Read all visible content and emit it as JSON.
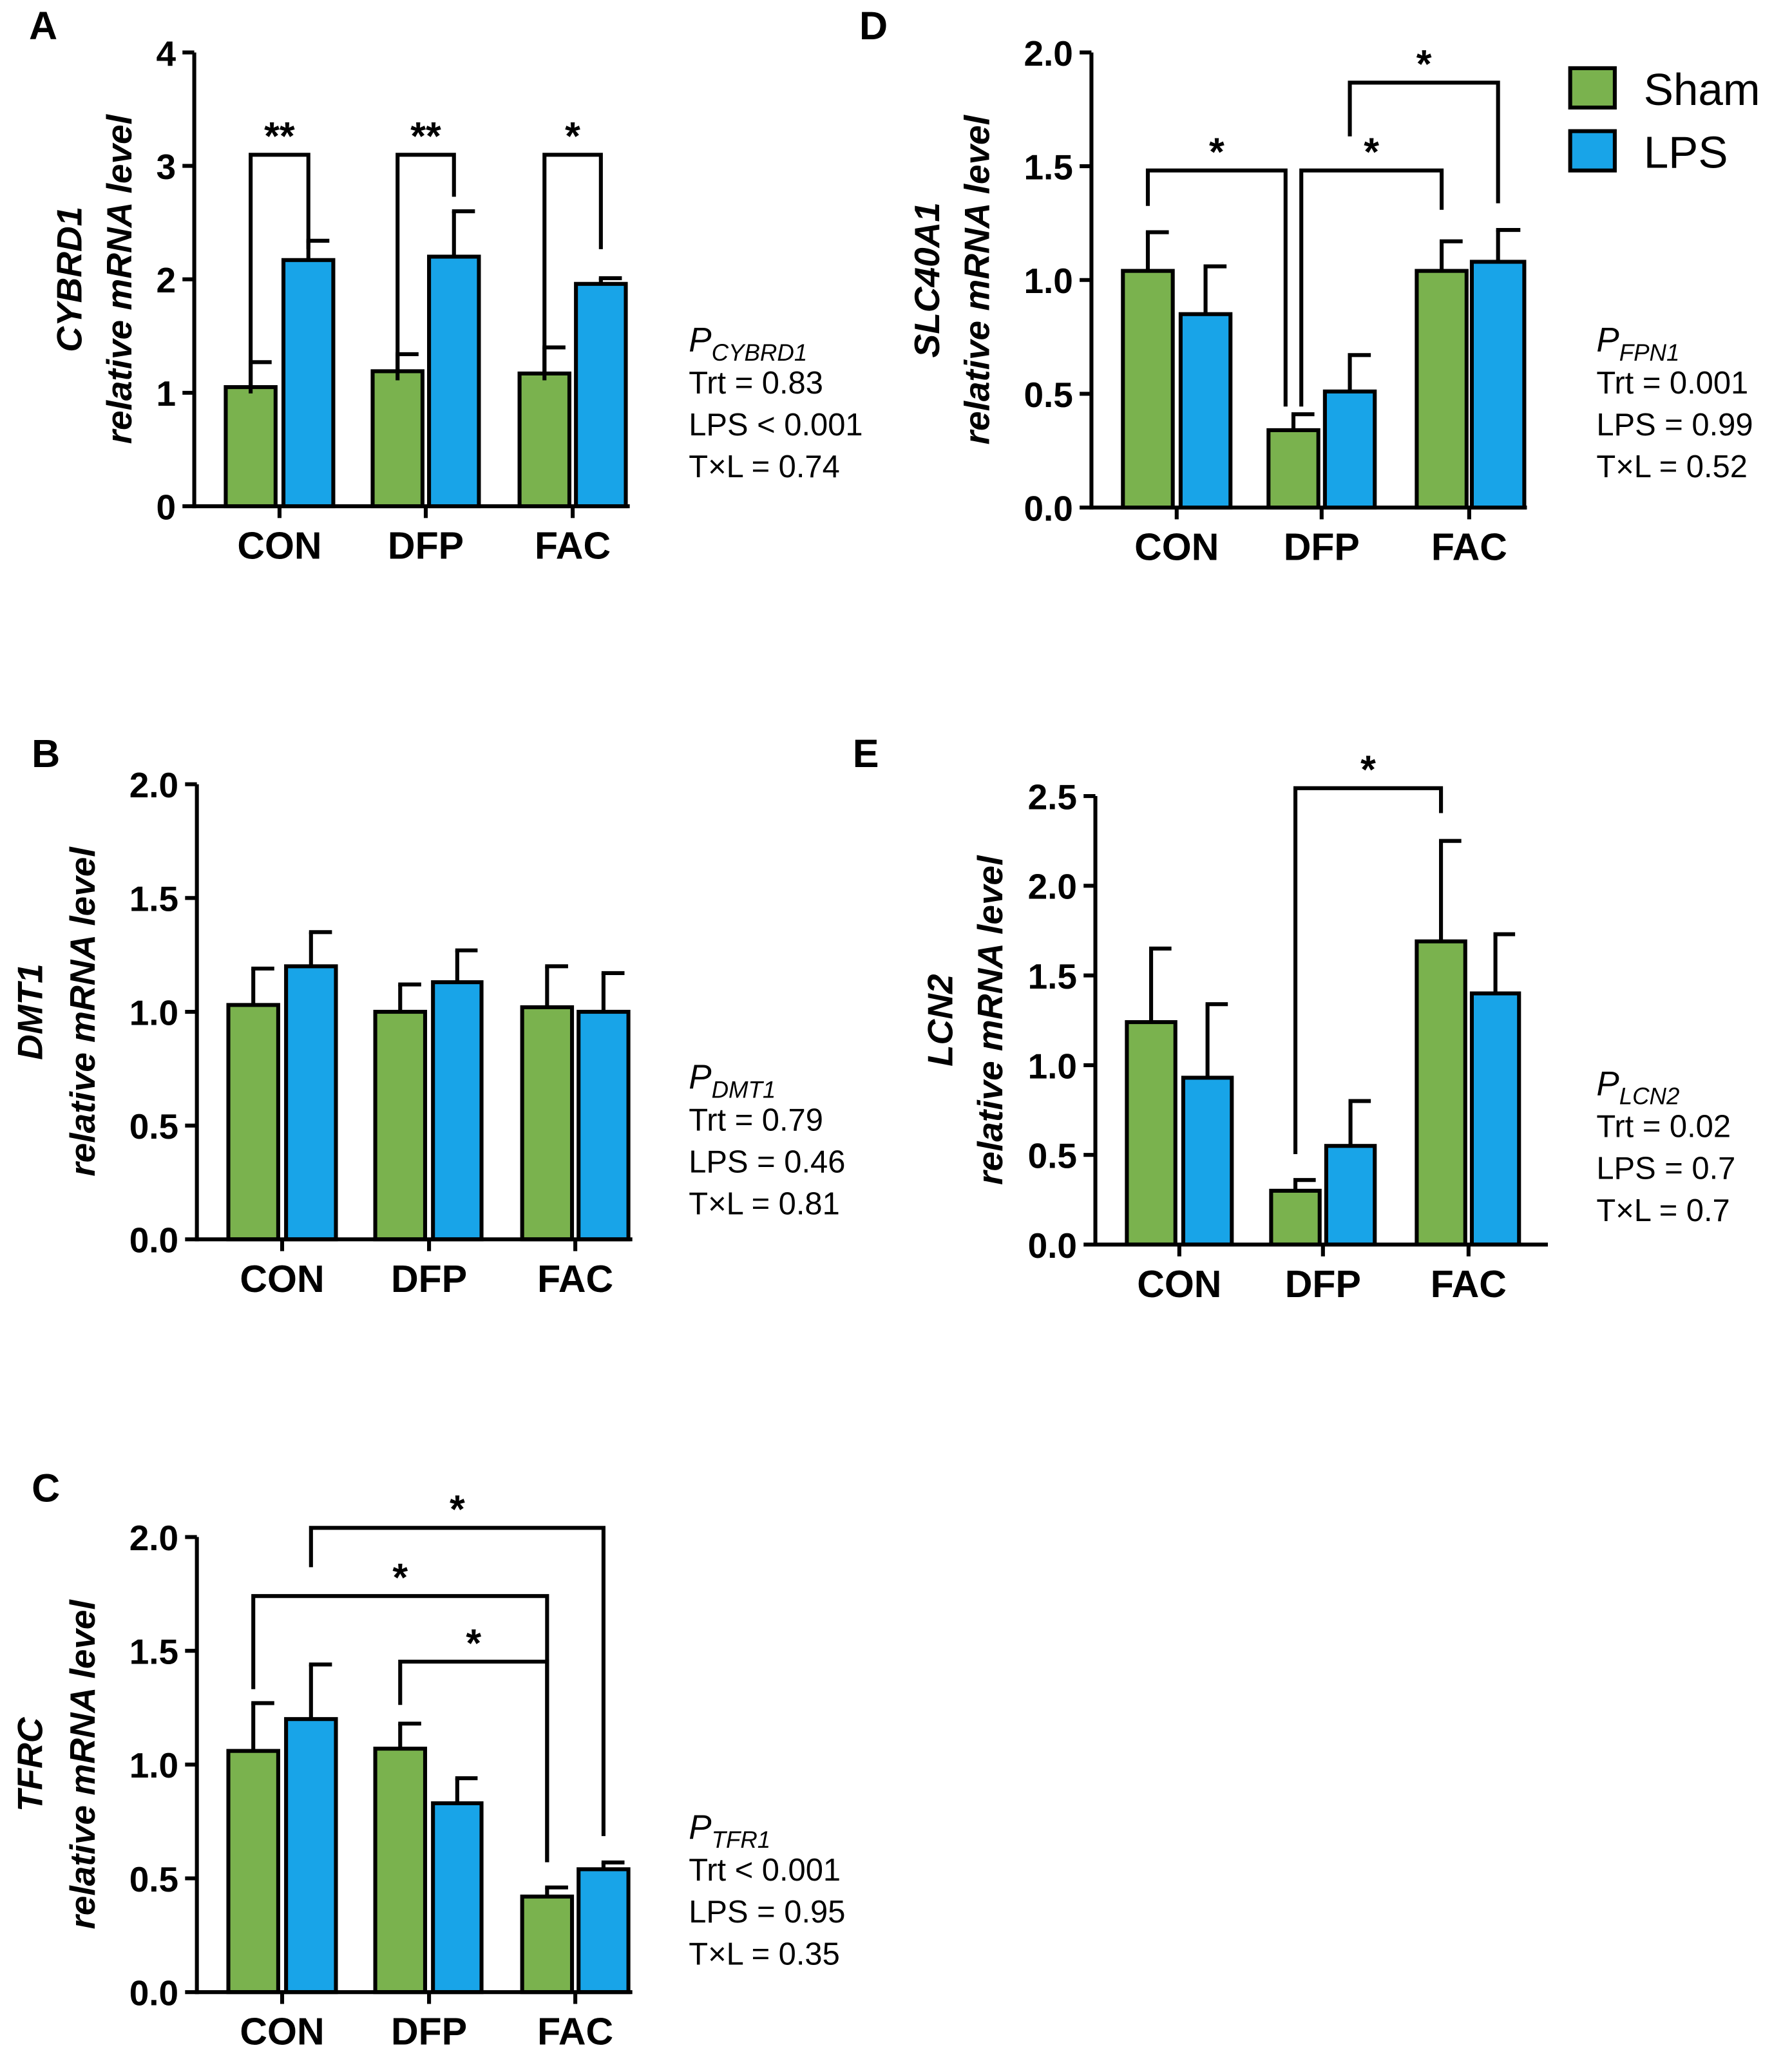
{
  "legend": [
    {
      "label": "Sham",
      "color": "#7ab24e"
    },
    {
      "label": "LPS",
      "color": "#18a4e8"
    }
  ],
  "chart_data": [
    {
      "panel": "A",
      "type": "bar",
      "title": "",
      "ylabel_gene": "CYBRD1",
      "ylabel": "relative mRNA level",
      "categories": [
        "CON",
        "DFP",
        "FAC"
      ],
      "ylim": [
        0,
        4
      ],
      "ticks": [
        "0",
        "1",
        "2",
        "3",
        "4"
      ],
      "tick_values": [
        0,
        1,
        2,
        3,
        4
      ],
      "series": [
        {
          "name": "Sham",
          "values": [
            1.05,
            1.19,
            1.17
          ],
          "errors": [
            0.22,
            0.15,
            0.23
          ]
        },
        {
          "name": "LPS",
          "values": [
            2.17,
            2.2,
            1.96
          ],
          "errors": [
            0.17,
            0.4,
            0.05
          ]
        }
      ],
      "significance": [
        {
          "from": "CON Sham",
          "to": "CON LPS",
          "label": "**"
        },
        {
          "from": "DFP Sham",
          "to": "DFP LPS",
          "label": "**"
        },
        {
          "from": "FAC Sham",
          "to": "FAC LPS",
          "label": "*"
        }
      ],
      "stats": {
        "p_label": "P",
        "p_sub": "CYBRD1",
        "lines": [
          "Trt = 0.83",
          "LPS < 0.001",
          "T×L = 0.74"
        ]
      }
    },
    {
      "panel": "B",
      "type": "bar",
      "title": "",
      "ylabel_gene": "DMT1",
      "ylabel": "relative mRNA level",
      "categories": [
        "CON",
        "DFP",
        "FAC"
      ],
      "ylim": [
        0,
        2
      ],
      "ticks": [
        "0.0",
        "0.5",
        "1.0",
        "1.5",
        "2.0"
      ],
      "tick_values": [
        0,
        0.5,
        1,
        1.5,
        2
      ],
      "series": [
        {
          "name": "Sham",
          "values": [
            1.03,
            1.0,
            1.02
          ],
          "errors": [
            0.16,
            0.12,
            0.18
          ]
        },
        {
          "name": "LPS",
          "values": [
            1.2,
            1.13,
            1.0
          ],
          "errors": [
            0.15,
            0.14,
            0.17
          ]
        }
      ],
      "significance": [],
      "stats": {
        "p_label": "P",
        "p_sub": "DMT1",
        "lines": [
          "Trt = 0.79",
          "LPS = 0.46",
          "T×L = 0.81"
        ]
      }
    },
    {
      "panel": "C",
      "type": "bar",
      "title": "",
      "ylabel_gene": "TFRC",
      "ylabel": "relative mRNA level",
      "categories": [
        "CON",
        "DFP",
        "FAC"
      ],
      "ylim": [
        0,
        2
      ],
      "ticks": [
        "0.0",
        "0.5",
        "1.0",
        "1.5",
        "2.0"
      ],
      "tick_values": [
        0,
        0.5,
        1,
        1.5,
        2
      ],
      "series": [
        {
          "name": "Sham",
          "values": [
            1.06,
            1.07,
            0.42
          ],
          "errors": [
            0.21,
            0.11,
            0.04
          ]
        },
        {
          "name": "LPS",
          "values": [
            1.2,
            0.83,
            0.54
          ],
          "errors": [
            0.24,
            0.11,
            0.03
          ]
        }
      ],
      "significance": [
        {
          "from": "CON LPS",
          "to": "FAC LPS",
          "label": "*"
        },
        {
          "from": "CON Sham",
          "to": "FAC Sham",
          "label": "*"
        },
        {
          "from": "DFP Sham",
          "to": "FAC Sham",
          "label": "*"
        }
      ],
      "stats": {
        "p_label": "P",
        "p_sub": "TFR1",
        "lines": [
          "Trt < 0.001",
          "LPS = 0.95",
          "T×L = 0.35"
        ]
      }
    },
    {
      "panel": "D",
      "type": "bar",
      "title": "",
      "ylabel_gene": "SLC40A1",
      "ylabel": "relative mRNA level",
      "categories": [
        "CON",
        "DFP",
        "FAC"
      ],
      "ylim": [
        0,
        2
      ],
      "ticks": [
        "0.0",
        "0.5",
        "1.0",
        "1.5",
        "2.0"
      ],
      "tick_values": [
        0,
        0.5,
        1,
        1.5,
        2
      ],
      "series": [
        {
          "name": "Sham",
          "values": [
            1.04,
            0.34,
            1.04
          ],
          "errors": [
            0.17,
            0.07,
            0.13
          ]
        },
        {
          "name": "LPS",
          "values": [
            0.85,
            0.51,
            1.08
          ],
          "errors": [
            0.21,
            0.16,
            0.14
          ]
        }
      ],
      "significance": [
        {
          "from": "CON Sham",
          "to": "DFP Sham",
          "label": "*"
        },
        {
          "from": "DFP Sham",
          "to": "FAC Sham",
          "label": "*"
        },
        {
          "from": "DFP LPS",
          "to": "FAC LPS",
          "label": "*"
        }
      ],
      "stats": {
        "p_label": "P",
        "p_sub": "FPN1",
        "lines": [
          "Trt = 0.001",
          "LPS = 0.99",
          "T×L = 0.52"
        ]
      }
    },
    {
      "panel": "E",
      "type": "bar",
      "title": "",
      "ylabel_gene": "LCN2",
      "ylabel": "relative mRNA level",
      "categories": [
        "CON",
        "DFP",
        "FAC"
      ],
      "ylim": [
        0,
        2.5
      ],
      "ticks": [
        "0.0",
        "0.5",
        "1.0",
        "1.5",
        "2.0",
        "2.5"
      ],
      "tick_values": [
        0,
        0.5,
        1,
        1.5,
        2,
        2.5
      ],
      "series": [
        {
          "name": "Sham",
          "values": [
            1.24,
            0.3,
            1.69
          ],
          "errors": [
            0.41,
            0.06,
            0.56
          ]
        },
        {
          "name": "LPS",
          "values": [
            0.93,
            0.55,
            1.4
          ],
          "errors": [
            0.41,
            0.25,
            0.33
          ]
        }
      ],
      "significance": [
        {
          "from": "DFP Sham",
          "to": "FAC Sham",
          "label": "*"
        }
      ],
      "stats": {
        "p_label": "P",
        "p_sub": "LCN2",
        "lines": [
          "Trt = 0.02",
          "LPS = 0.7",
          "T×L = 0.7"
        ]
      }
    }
  ]
}
